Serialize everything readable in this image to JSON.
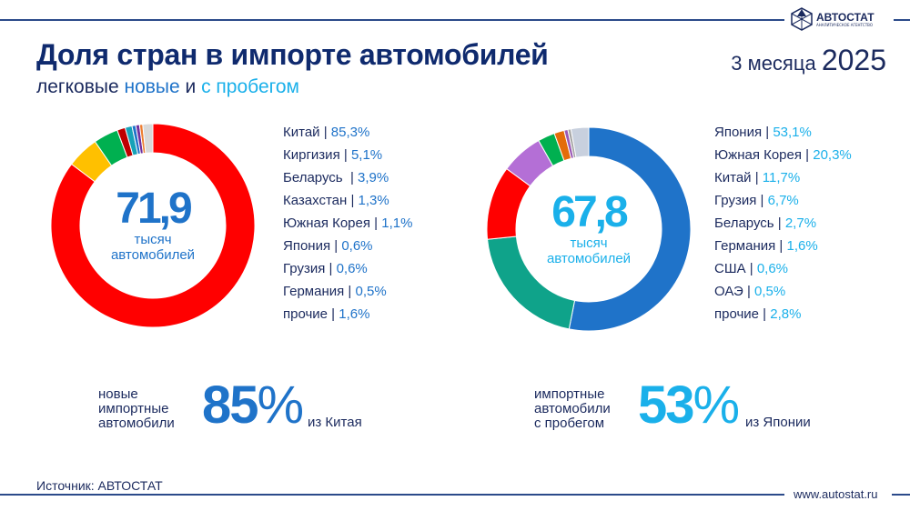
{
  "brand": {
    "name": "АВТОСТАТ",
    "tagline": "АНАЛИТИЧЕСКОЕ АГЕНТСТВО"
  },
  "header": {
    "title": "Доля стран в импорте автомобилей",
    "subtitle_prefix": "легковые ",
    "subtitle_new": "новые",
    "subtitle_mid": " и ",
    "subtitle_used": "с пробегом",
    "period_label": "3 месяца",
    "period_year": "2025",
    "colors": {
      "new": "#1f73c9",
      "used": "#1ab0ea"
    }
  },
  "chart_data": [
    {
      "type": "pie",
      "title": "",
      "center_value": "71,9",
      "center_unit_1": "тысяч",
      "center_unit_2": "автомобилей",
      "center_color": "#1f73c9",
      "categories": [
        "Китай",
        "Киргизия",
        "Беларусь ",
        "Казахстан",
        "Южная Корея",
        "Япония",
        "Грузия",
        "Германия",
        "прочие"
      ],
      "values": [
        85.3,
        5.1,
        3.9,
        1.3,
        1.1,
        0.6,
        0.6,
        0.5,
        1.6
      ],
      "labels": [
        "85,3%",
        "5,1%",
        "3,9%",
        "1,3%",
        "1,1%",
        "0,6%",
        "0,6%",
        "0,5%",
        "1,6%"
      ],
      "colors": [
        "#ff0000",
        "#ffc000",
        "#00b050",
        "#c00000",
        "#17a2b8",
        "#1f73c9",
        "#7030a0",
        "#ed7d31",
        "#d9d9d9"
      ],
      "legend": "right"
    },
    {
      "type": "pie",
      "title": "",
      "center_value": "67,8",
      "center_unit_1": "тысяч",
      "center_unit_2": "автомобилей",
      "center_color": "#1ab0ea",
      "categories": [
        "Япония",
        "Южная Корея",
        "Китай",
        "Грузия",
        "Беларусь",
        "Германия",
        "США",
        "ОАЭ",
        "прочие"
      ],
      "values": [
        53.1,
        20.3,
        11.7,
        6.7,
        2.7,
        1.6,
        0.6,
        0.5,
        2.8
      ],
      "labels": [
        "53,1%",
        "20,3%",
        "11,7%",
        "6,7%",
        "2,7%",
        "1,6%",
        "0,6%",
        "0,5%",
        "2,8%"
      ],
      "colors": [
        "#1f73c9",
        "#0fa38a",
        "#ff0000",
        "#b46fd6",
        "#00b050",
        "#e36c0a",
        "#9b59b6",
        "#a6a6a6",
        "#c8d0de"
      ],
      "legend": "right"
    }
  ],
  "highlights": [
    {
      "label_lines": [
        "новые",
        "импортные",
        "автомобили"
      ],
      "value": "85",
      "unit": "%",
      "from": "из Китая"
    },
    {
      "label_lines": [
        "импортные",
        "автомобили",
        "с пробегом"
      ],
      "value": "53",
      "unit": "%",
      "from": "из Японии"
    }
  ],
  "footer": {
    "source": "Источник: АВТОСТАТ",
    "site": "www.autostat.ru"
  }
}
